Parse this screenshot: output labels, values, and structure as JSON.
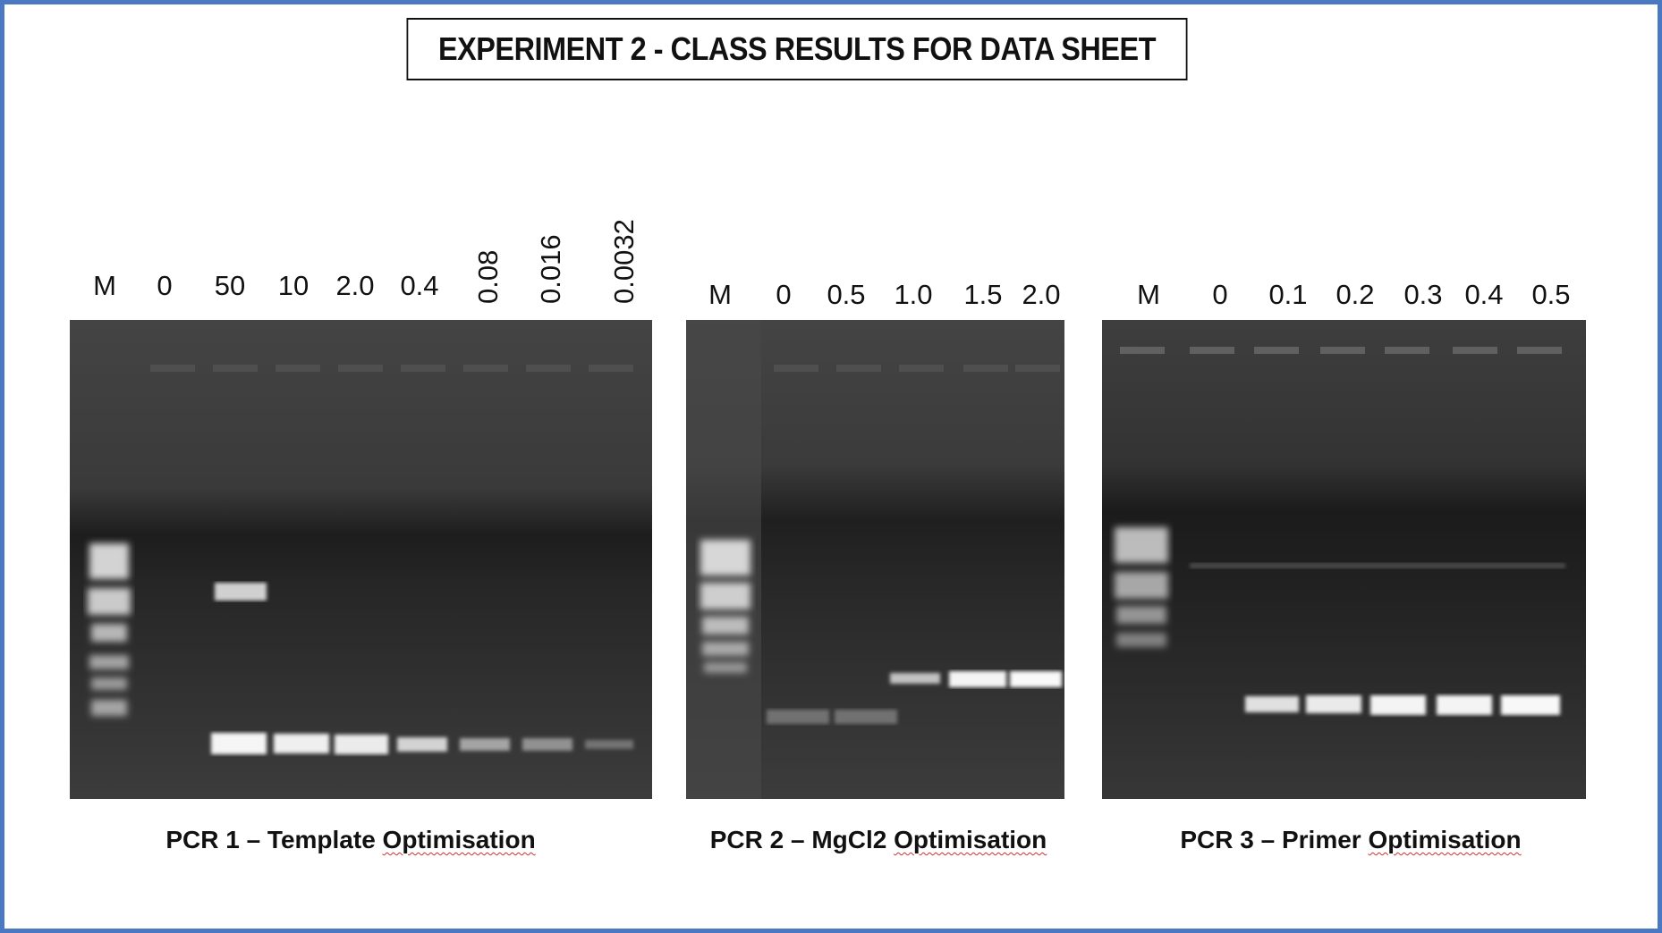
{
  "title": "EXPERIMENT 2 - CLASS RESULTS FOR DATA SHEET",
  "gels": [
    {
      "caption_prefix": "PCR 1 – Template ",
      "caption_word": "Optimisation",
      "lanes": [
        "M",
        "0",
        "50",
        "10",
        "2.0",
        "0.4",
        "0.08",
        "0.016",
        "0.0032"
      ]
    },
    {
      "caption_prefix": "PCR 2 – MgCl2 ",
      "caption_word": "Optimisation",
      "lanes": [
        "M",
        "0",
        "0.5",
        "1.0",
        "1.5",
        "2.0"
      ]
    },
    {
      "caption_prefix": "PCR 3 – Primer ",
      "caption_word": "Optimisation",
      "lanes": [
        "M",
        "0",
        "0.1",
        "0.2",
        "0.3",
        "0.4",
        "0.5"
      ]
    }
  ],
  "colors": {
    "frame_border": "#4a78c2",
    "gel_background": "#3a3a3a",
    "band": "#ffffff",
    "spelling_underline": "#d03030"
  }
}
